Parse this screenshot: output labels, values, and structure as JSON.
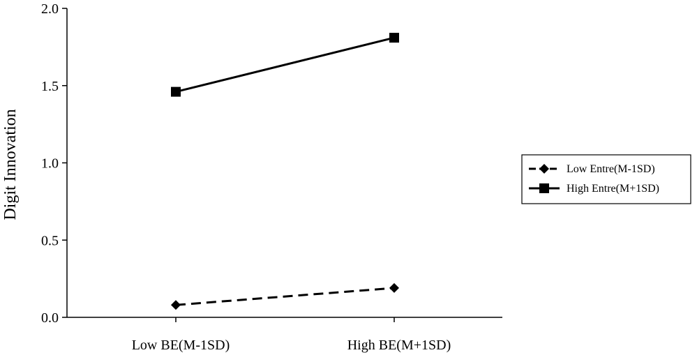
{
  "chart_data": {
    "type": "line",
    "title": "",
    "xlabel": "",
    "ylabel": "Digit Innovation",
    "categories": [
      "Low BE(M-1SD)",
      "High BE(M+1SD)"
    ],
    "ylim": [
      0,
      2.0
    ],
    "yticks": [
      "0.0",
      "0.5",
      "1.0",
      "1.5",
      "2.0"
    ],
    "grid": false,
    "legend_position": "right",
    "series": [
      {
        "name": "Low Entre(M-1SD)",
        "values": [
          0.08,
          0.19
        ],
        "line_style": "dashed",
        "marker": "diamond",
        "color": "#000000"
      },
      {
        "name": "High Entre(M+1SD)",
        "values": [
          1.46,
          1.81
        ],
        "line_style": "solid",
        "marker": "square",
        "color": "#000000"
      }
    ]
  }
}
